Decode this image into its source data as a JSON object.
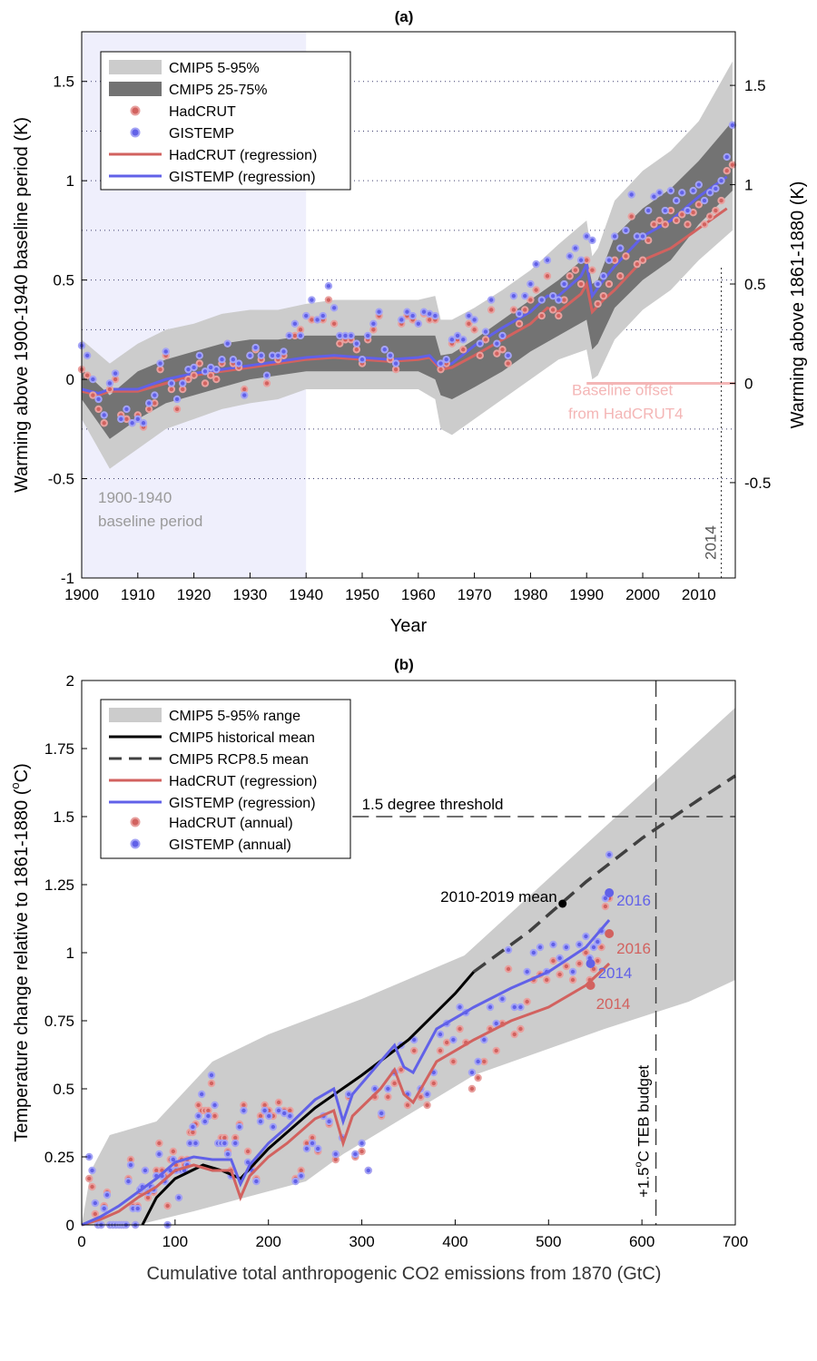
{
  "colors": {
    "band_light": "#cccccc",
    "band_dark": "#737373",
    "hadcrut": "#d2625f",
    "gistemp": "#6161e8",
    "hadcrut_dot": "#e8a19f",
    "gistemp_dot": "#a3a3f5",
    "baseline_shade": "#efeffc",
    "offset_text": "#f4b6b6",
    "black": "#000000",
    "dash": "#404040",
    "gray_text": "#9a9a9a"
  },
  "chart_data": [
    {
      "type": "line",
      "panel": "(a)",
      "title": "(a)",
      "xlabel": "Year",
      "ylabel": "Warming above 1900-1940 baseline period (K)",
      "ylabel_right": "Warming above 1861-1880 (K)",
      "xlim": [
        1900,
        2016.5
      ],
      "ylim": [
        -1,
        1.75
      ],
      "xticks": [
        1900,
        1910,
        1920,
        1930,
        1940,
        1950,
        1960,
        1970,
        1980,
        1990,
        2000,
        2010
      ],
      "yticks": [
        -1,
        -0.5,
        0,
        0.5,
        1,
        1.5
      ],
      "yticks_right": [
        -0.5,
        0,
        0.5,
        1,
        1.5
      ],
      "right_axis_offset": 0.02,
      "grid_y": [
        1.5,
        1.25,
        1.0,
        0.75,
        0.5,
        0.25,
        -0.25,
        -0.5
      ],
      "baseline_period": [
        1900,
        1940
      ],
      "baseline_label": [
        "1900-1940",
        "baseline period"
      ],
      "offset_label": [
        "Baseline offset",
        "from HadCRUT4"
      ],
      "vline": {
        "x": 2014,
        "label": "2014"
      },
      "legend": [
        "CMIP5 5-95%",
        "CMIP5 25-75%",
        "HadCRUT",
        "GISTEMP",
        "HadCRUT (regression)",
        "GISTEMP (regression)"
      ],
      "legend_position": "top-left",
      "band_x": [
        1900,
        1905,
        1910,
        1915,
        1920,
        1925,
        1930,
        1935,
        1940,
        1945,
        1950,
        1955,
        1960,
        1963,
        1964,
        1966,
        1970,
        1975,
        1980,
        1985,
        1990,
        1991,
        1992,
        1995,
        2000,
        2005,
        2010,
        2016
      ],
      "band_5_95_lo": [
        -0.2,
        -0.45,
        -0.35,
        -0.25,
        -0.2,
        -0.15,
        -0.12,
        -0.1,
        -0.05,
        -0.05,
        -0.05,
        -0.05,
        -0.05,
        -0.1,
        -0.25,
        -0.28,
        -0.2,
        -0.1,
        0.0,
        0.1,
        0.15,
        0.0,
        0.02,
        0.2,
        0.35,
        0.45,
        0.6,
        0.75
      ],
      "band_5_95_hi": [
        0.2,
        0.08,
        0.18,
        0.25,
        0.28,
        0.33,
        0.35,
        0.35,
        0.38,
        0.4,
        0.4,
        0.4,
        0.4,
        0.42,
        0.3,
        0.3,
        0.36,
        0.45,
        0.55,
        0.68,
        0.8,
        0.62,
        0.66,
        0.9,
        1.05,
        1.15,
        1.3,
        1.6
      ],
      "band_25_75_lo": [
        -0.1,
        -0.3,
        -0.2,
        -0.12,
        -0.08,
        -0.04,
        0.0,
        0.02,
        0.04,
        0.04,
        0.04,
        0.04,
        0.04,
        0.0,
        -0.08,
        -0.1,
        -0.04,
        0.04,
        0.14,
        0.22,
        0.3,
        0.15,
        0.18,
        0.36,
        0.5,
        0.6,
        0.78,
        0.95
      ],
      "band_25_75_hi": [
        0.05,
        -0.08,
        0.04,
        0.1,
        0.14,
        0.18,
        0.2,
        0.2,
        0.22,
        0.22,
        0.22,
        0.22,
        0.22,
        0.22,
        0.12,
        0.13,
        0.2,
        0.3,
        0.4,
        0.5,
        0.62,
        0.48,
        0.5,
        0.72,
        0.86,
        0.96,
        1.1,
        1.3
      ],
      "regression_x": [
        1900,
        1903,
        1905,
        1910,
        1915,
        1920,
        1925,
        1930,
        1935,
        1940,
        1945,
        1950,
        1955,
        1960,
        1962,
        1963,
        1964,
        1966,
        1970,
        1975,
        1980,
        1983,
        1985,
        1989,
        1990,
        1991,
        1993,
        1995,
        2000,
        2005,
        2010,
        2015
      ],
      "series": [
        {
          "name": "HadCRUT (regression)",
          "y": [
            -0.06,
            -0.08,
            -0.06,
            -0.06,
            -0.02,
            0.02,
            0.04,
            0.06,
            0.08,
            0.1,
            0.11,
            0.1,
            0.09,
            0.1,
            0.11,
            0.08,
            0.05,
            0.06,
            0.12,
            0.2,
            0.28,
            0.36,
            0.34,
            0.43,
            0.48,
            0.34,
            0.4,
            0.45,
            0.6,
            0.66,
            0.76,
            0.86
          ]
        },
        {
          "name": "GISTEMP (regression)",
          "y": [
            -0.05,
            -0.07,
            -0.05,
            -0.05,
            0.0,
            0.03,
            0.05,
            0.07,
            0.09,
            0.11,
            0.12,
            0.11,
            0.1,
            0.11,
            0.12,
            0.09,
            0.06,
            0.08,
            0.17,
            0.26,
            0.34,
            0.42,
            0.42,
            0.52,
            0.58,
            0.42,
            0.5,
            0.57,
            0.72,
            0.8,
            0.92,
            1.02
          ]
        },
        {
          "name": "HadCRUT",
          "x": [
            1900,
            1901,
            1902,
            1903,
            1904,
            1905,
            1906,
            1907,
            1908,
            1909,
            1910,
            1911,
            1912,
            1913,
            1914,
            1915,
            1916,
            1917,
            1918,
            1919,
            1920,
            1921,
            1922,
            1923,
            1924,
            1925,
            1926,
            1927,
            1928,
            1929,
            1930,
            1931,
            1932,
            1933,
            1934,
            1935,
            1936,
            1937,
            1938,
            1939,
            1940,
            1941,
            1942,
            1943,
            1944,
            1945,
            1946,
            1947,
            1948,
            1949,
            1950,
            1951,
            1952,
            1953,
            1954,
            1955,
            1956,
            1957,
            1958,
            1959,
            1960,
            1961,
            1962,
            1963,
            1964,
            1965,
            1966,
            1967,
            1968,
            1969,
            1970,
            1971,
            1972,
            1973,
            1974,
            1975,
            1976,
            1977,
            1978,
            1979,
            1980,
            1981,
            1982,
            1983,
            1984,
            1985,
            1986,
            1987,
            1988,
            1989,
            1990,
            1991,
            1992,
            1993,
            1994,
            1995,
            1996,
            1997,
            1998,
            1999,
            2000,
            2001,
            2002,
            2003,
            2004,
            2005,
            2006,
            2007,
            2008,
            2009,
            2010,
            2011,
            2012,
            2013,
            2014,
            2015,
            2016
          ],
          "y": [
            0.05,
            0.02,
            -0.08,
            -0.15,
            -0.22,
            -0.05,
            0.0,
            -0.18,
            -0.2,
            -0.22,
            -0.18,
            -0.24,
            -0.15,
            -0.12,
            0.05,
            0.12,
            -0.05,
            -0.15,
            -0.05,
            0.0,
            0.02,
            0.08,
            -0.02,
            0.02,
            0.0,
            0.08,
            0.18,
            0.08,
            0.06,
            -0.05,
            0.12,
            0.15,
            0.1,
            -0.02,
            0.12,
            0.1,
            0.12,
            0.22,
            0.22,
            0.25,
            0.32,
            0.3,
            0.3,
            0.3,
            0.4,
            0.28,
            0.18,
            0.2,
            0.2,
            0.15,
            0.08,
            0.2,
            0.25,
            0.32,
            0.15,
            0.1,
            0.05,
            0.28,
            0.32,
            0.3,
            0.28,
            0.33,
            0.3,
            0.3,
            0.05,
            0.08,
            0.18,
            0.2,
            0.15,
            0.28,
            0.25,
            0.12,
            0.2,
            0.35,
            0.13,
            0.15,
            0.08,
            0.35,
            0.28,
            0.35,
            0.4,
            0.45,
            0.32,
            0.52,
            0.35,
            0.32,
            0.4,
            0.52,
            0.55,
            0.48,
            0.6,
            0.55,
            0.38,
            0.42,
            0.48,
            0.6,
            0.52,
            0.62,
            0.82,
            0.58,
            0.6,
            0.7,
            0.78,
            0.8,
            0.78,
            0.85,
            0.8,
            0.83,
            0.78,
            0.84,
            0.88,
            0.78,
            0.82,
            0.85,
            0.9,
            1.05,
            1.08
          ]
        },
        {
          "name": "GISTEMP",
          "x": [
            1900,
            1901,
            1902,
            1903,
            1904,
            1905,
            1906,
            1907,
            1908,
            1909,
            1910,
            1911,
            1912,
            1913,
            1914,
            1915,
            1916,
            1917,
            1918,
            1919,
            1920,
            1921,
            1922,
            1923,
            1924,
            1925,
            1926,
            1927,
            1928,
            1929,
            1930,
            1931,
            1932,
            1933,
            1934,
            1935,
            1936,
            1937,
            1938,
            1939,
            1940,
            1941,
            1942,
            1943,
            1944,
            1945,
            1946,
            1947,
            1948,
            1949,
            1950,
            1951,
            1952,
            1953,
            1954,
            1955,
            1956,
            1957,
            1958,
            1959,
            1960,
            1961,
            1962,
            1963,
            1964,
            1965,
            1966,
            1967,
            1968,
            1969,
            1970,
            1971,
            1972,
            1973,
            1974,
            1975,
            1976,
            1977,
            1978,
            1979,
            1980,
            1981,
            1982,
            1983,
            1984,
            1985,
            1986,
            1987,
            1988,
            1989,
            1990,
            1991,
            1992,
            1993,
            1994,
            1995,
            1996,
            1997,
            1998,
            1999,
            2000,
            2001,
            2002,
            2003,
            2004,
            2005,
            2006,
            2007,
            2008,
            2009,
            2010,
            2011,
            2012,
            2013,
            2014,
            2015,
            2016
          ],
          "y": [
            0.17,
            0.12,
            0.0,
            -0.1,
            -0.18,
            -0.02,
            0.03,
            -0.2,
            -0.15,
            -0.22,
            -0.2,
            -0.22,
            -0.12,
            -0.08,
            0.08,
            0.14,
            -0.02,
            -0.1,
            -0.02,
            0.05,
            0.06,
            0.12,
            0.04,
            0.06,
            0.05,
            0.1,
            0.18,
            0.1,
            0.08,
            -0.08,
            0.12,
            0.16,
            0.12,
            0.02,
            0.12,
            0.12,
            0.14,
            0.22,
            0.28,
            0.22,
            0.32,
            0.4,
            0.3,
            0.32,
            0.47,
            0.36,
            0.22,
            0.22,
            0.22,
            0.18,
            0.1,
            0.22,
            0.28,
            0.34,
            0.15,
            0.12,
            0.08,
            0.3,
            0.34,
            0.32,
            0.28,
            0.34,
            0.33,
            0.32,
            0.08,
            0.1,
            0.2,
            0.22,
            0.2,
            0.32,
            0.3,
            0.18,
            0.24,
            0.4,
            0.18,
            0.22,
            0.12,
            0.42,
            0.33,
            0.42,
            0.48,
            0.58,
            0.4,
            0.6,
            0.42,
            0.4,
            0.48,
            0.62,
            0.66,
            0.6,
            0.72,
            0.7,
            0.48,
            0.52,
            0.6,
            0.72,
            0.66,
            0.75,
            0.93,
            0.72,
            0.72,
            0.85,
            0.92,
            0.94,
            0.85,
            0.95,
            0.9,
            0.94,
            0.85,
            0.95,
            0.98,
            0.9,
            0.94,
            0.96,
            1.0,
            1.12,
            1.28
          ]
        }
      ]
    },
    {
      "type": "line",
      "panel": "(b)",
      "title": "(b)",
      "xlabel": "Cumulative total anthropogenic CO2 emissions from 1870 (GtC)",
      "ylabel": "Temperature change relative to 1861-1880 (°C)",
      "ylabel_parts": [
        "Temperature change relative to 1861-1880 (",
        "o",
        "C)"
      ],
      "xlim": [
        0,
        700
      ],
      "ylim": [
        0,
        2
      ],
      "xticks": [
        0,
        100,
        200,
        300,
        400,
        500,
        600,
        700
      ],
      "yticks": [
        0,
        0.25,
        0.5,
        0.75,
        1,
        1.25,
        1.5,
        1.75,
        2
      ],
      "threshold": {
        "y": 1.5,
        "label": "1.5 degree threshold"
      },
      "budget": {
        "x": 615,
        "label_parts": [
          "+1.5",
          "o",
          "C TEB budget"
        ]
      },
      "legend": [
        "CMIP5 5-95% range",
        "CMIP5 historical mean",
        "CMIP5 RCP8.5 mean",
        "HadCRUT (regression)",
        "GISTEMP (regression)",
        "HadCRUT (annual)",
        "GISTEMP (annual)"
      ],
      "legend_position": "top-left",
      "range_polygon": {
        "x": [
          10,
          30,
          80,
          140,
          200,
          300,
          410,
          700,
          700,
          650,
          560,
          420,
          280,
          240,
          120,
          60,
          20,
          5,
          0
        ],
        "y": [
          0.2,
          0.33,
          0.38,
          0.6,
          0.7,
          0.83,
          0.99,
          1.9,
          0.9,
          0.82,
          0.72,
          0.55,
          0.26,
          0.16,
          0.05,
          0.0,
          0.0,
          0.0,
          0.0
        ]
      },
      "hist_mean": {
        "x": [
          65,
          80,
          100,
          130,
          150,
          170,
          200,
          250,
          300,
          350,
          400,
          420
        ],
        "y": [
          0.0,
          0.1,
          0.17,
          0.22,
          0.2,
          0.17,
          0.28,
          0.43,
          0.55,
          0.68,
          0.85,
          0.93
        ]
      },
      "rcp85_mean": {
        "x": [
          420,
          480,
          540,
          600,
          660,
          700
        ],
        "y": [
          0.93,
          1.08,
          1.26,
          1.42,
          1.56,
          1.65
        ]
      },
      "regression": [
        {
          "name": "HadCRUT (regression)",
          "x": [
            0,
            20,
            40,
            60,
            80,
            100,
            120,
            140,
            160,
            170,
            180,
            200,
            220,
            250,
            270,
            280,
            290,
            320,
            335,
            345,
            355,
            380,
            420,
            460,
            500,
            540,
            565
          ],
          "y": [
            0.0,
            0.02,
            0.05,
            0.1,
            0.14,
            0.2,
            0.22,
            0.2,
            0.2,
            0.1,
            0.18,
            0.25,
            0.3,
            0.39,
            0.42,
            0.3,
            0.4,
            0.5,
            0.57,
            0.48,
            0.45,
            0.6,
            0.68,
            0.75,
            0.8,
            0.88,
            0.96
          ]
        },
        {
          "name": "GISTEMP (regression)",
          "x": [
            0,
            20,
            40,
            60,
            80,
            100,
            120,
            140,
            160,
            170,
            180,
            200,
            220,
            250,
            270,
            280,
            290,
            320,
            335,
            345,
            355,
            380,
            420,
            460,
            500,
            540,
            565
          ],
          "y": [
            0.0,
            0.03,
            0.07,
            0.12,
            0.17,
            0.23,
            0.25,
            0.24,
            0.24,
            0.15,
            0.22,
            0.3,
            0.36,
            0.46,
            0.5,
            0.38,
            0.48,
            0.6,
            0.66,
            0.58,
            0.56,
            0.72,
            0.8,
            0.87,
            0.93,
            1.02,
            1.12
          ]
        }
      ],
      "mean_2010_2019": {
        "x": 515,
        "y": 1.18,
        "label": "2010-2019 mean"
      },
      "points_2014": {
        "hadcrut": {
          "x": 545,
          "y": 0.88
        },
        "gistemp": {
          "x": 545,
          "y": 0.96
        },
        "label": "2014"
      },
      "points_2016": {
        "hadcrut": {
          "x": 565,
          "y": 1.07
        },
        "gistemp": {
          "x": 565,
          "y": 1.22
        },
        "label": "2016"
      }
    }
  ]
}
